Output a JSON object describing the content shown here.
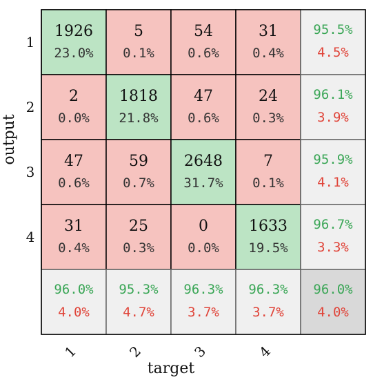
{
  "chart_data": {
    "type": "heatmap",
    "xlabel": "target",
    "ylabel": "output",
    "row_labels": [
      "1",
      "2",
      "3",
      "4"
    ],
    "col_labels": [
      "1",
      "2",
      "3",
      "4"
    ],
    "counts": [
      [
        1926,
        5,
        54,
        31
      ],
      [
        2,
        1818,
        47,
        24
      ],
      [
        47,
        59,
        2648,
        7
      ],
      [
        31,
        25,
        0,
        1633
      ]
    ],
    "cell_percents": [
      [
        "23.0%",
        "0.1%",
        "0.6%",
        "0.4%"
      ],
      [
        "0.0%",
        "21.8%",
        "0.6%",
        "0.3%"
      ],
      [
        "0.6%",
        "0.7%",
        "31.7%",
        "0.1%"
      ],
      [
        "0.4%",
        "0.3%",
        "0.0%",
        "19.5%"
      ]
    ],
    "row_summary": [
      {
        "correct": "95.5%",
        "error": "4.5%"
      },
      {
        "correct": "96.1%",
        "error": "3.9%"
      },
      {
        "correct": "95.9%",
        "error": "4.1%"
      },
      {
        "correct": "96.7%",
        "error": "3.3%"
      }
    ],
    "col_summary": [
      {
        "correct": "96.0%",
        "error": "4.0%"
      },
      {
        "correct": "95.3%",
        "error": "4.7%"
      },
      {
        "correct": "96.3%",
        "error": "3.7%"
      },
      {
        "correct": "96.3%",
        "error": "3.7%"
      }
    ],
    "overall": {
      "correct": "96.0%",
      "error": "4.0%"
    },
    "colors": {
      "diagonal": "#bce4c4",
      "off_diagonal": "#f6c3bf",
      "summary": "#f0f0f0",
      "overall": "#d9d9d9",
      "correct_text": "#3aa656",
      "error_text": "#e0453a",
      "grid": "#000000",
      "summary_border": "#666666"
    }
  }
}
